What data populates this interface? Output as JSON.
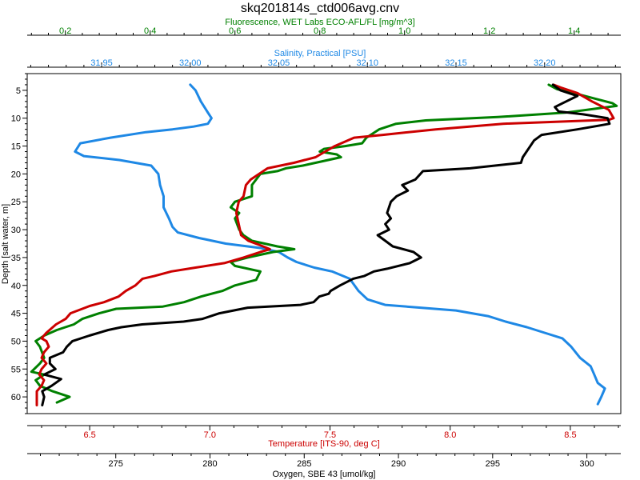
{
  "chart_data": {
    "type": "line",
    "title": "skq201814s_ctd006avg.cnv",
    "y_axis": {
      "label": "Depth [salt water, m]",
      "range": [
        63,
        2
      ],
      "ticks": [
        5,
        10,
        15,
        20,
        25,
        30,
        35,
        40,
        45,
        50,
        55,
        60
      ],
      "reversed": true
    },
    "x_axes": {
      "fluorescence": {
        "label": "Fluorescence, WET Labs ECO-AFL/FL [mg/m^3]",
        "position": "top",
        "range": [
          0.11,
          1.51
        ],
        "ticks": [
          "0.2",
          "0.4",
          "0.6",
          "0.8",
          "1.0",
          "1.2",
          "1.4"
        ],
        "color": "#008000"
      },
      "salinity": {
        "label": "Salinity, Practical [PSU]",
        "position": "top",
        "range": [
          31.908,
          32.243
        ],
        "ticks": [
          "31.95",
          "32.00",
          "32.05",
          "32.10",
          "32.15",
          "32.20"
        ],
        "color": "#1e88e5"
      },
      "temperature": {
        "label": "Temperature [ITS-90, deg C]",
        "position": "bottom",
        "range": [
          6.24,
          8.71
        ],
        "ticks": [
          "6.5",
          "7.0",
          "7.5",
          "8.0",
          "8.5"
        ],
        "color": "#cc0000"
      },
      "oxygen": {
        "label": "Oxygen, SBE 43 [umol/kg]",
        "position": "bottom",
        "range": [
          270.3,
          301.8
        ],
        "ticks": [
          "275",
          "280",
          "285",
          "290",
          "295",
          "300"
        ],
        "color": "#000000"
      }
    },
    "series": [
      {
        "axis": "salinity",
        "color": "#1e88e5",
        "points": [
          [
            32.0,
            4
          ],
          [
            32.003,
            5
          ],
          [
            32.006,
            7
          ],
          [
            32.008,
            8
          ],
          [
            32.01,
            9
          ],
          [
            32.012,
            10
          ],
          [
            32.01,
            11
          ],
          [
            32.002,
            11.5
          ],
          [
            31.99,
            12
          ],
          [
            31.975,
            12.5
          ],
          [
            31.955,
            13.5
          ],
          [
            31.938,
            14.5
          ],
          [
            31.935,
            16
          ],
          [
            31.94,
            16.8
          ],
          [
            31.96,
            17.5
          ],
          [
            31.978,
            18.5
          ],
          [
            31.982,
            20
          ],
          [
            31.983,
            22
          ],
          [
            31.985,
            24
          ],
          [
            31.985,
            26
          ],
          [
            31.988,
            28
          ],
          [
            31.99,
            29.5
          ],
          [
            31.993,
            30.5
          ],
          [
            32.005,
            31.5
          ],
          [
            32.02,
            32.5
          ],
          [
            32.04,
            33.3
          ],
          [
            32.05,
            34
          ],
          [
            32.055,
            35
          ],
          [
            32.06,
            35.8
          ],
          [
            32.07,
            36.8
          ],
          [
            32.08,
            37.5
          ],
          [
            32.09,
            38.8
          ],
          [
            32.095,
            41
          ],
          [
            32.1,
            42.5
          ],
          [
            32.11,
            43.5
          ],
          [
            32.13,
            44
          ],
          [
            32.15,
            44.5
          ],
          [
            32.168,
            45.5
          ],
          [
            32.178,
            46.5
          ],
          [
            32.19,
            47.5
          ],
          [
            32.2,
            48.5
          ],
          [
            32.21,
            49.5
          ],
          [
            32.215,
            51
          ],
          [
            32.22,
            53
          ],
          [
            32.226,
            54.5
          ],
          [
            32.228,
            56
          ],
          [
            32.23,
            57.5
          ],
          [
            32.234,
            58.5
          ],
          [
            32.232,
            60
          ],
          [
            32.23,
            61.3
          ]
        ]
      },
      {
        "axis": "fluorescence",
        "color": "#008000",
        "points": [
          [
            1.34,
            4
          ],
          [
            1.36,
            4.8
          ],
          [
            1.4,
            5.5
          ],
          [
            1.45,
            6.5
          ],
          [
            1.49,
            7.3
          ],
          [
            1.5,
            7.8
          ],
          [
            1.45,
            8.3
          ],
          [
            1.38,
            9
          ],
          [
            1.22,
            9.8
          ],
          [
            1.05,
            10.4
          ],
          [
            0.98,
            11
          ],
          [
            0.94,
            12
          ],
          [
            0.91,
            13.5
          ],
          [
            0.9,
            14.5
          ],
          [
            0.86,
            15
          ],
          [
            0.81,
            15.5
          ],
          [
            0.8,
            16
          ],
          [
            0.84,
            16.5
          ],
          [
            0.85,
            17
          ],
          [
            0.82,
            17.5
          ],
          [
            0.76,
            18.5
          ],
          [
            0.72,
            19
          ],
          [
            0.7,
            19.5
          ],
          [
            0.66,
            20
          ],
          [
            0.65,
            21
          ],
          [
            0.64,
            22
          ],
          [
            0.64,
            24
          ],
          [
            0.6,
            25
          ],
          [
            0.59,
            26
          ],
          [
            0.61,
            27
          ],
          [
            0.6,
            28
          ],
          [
            0.61,
            30
          ],
          [
            0.62,
            31
          ],
          [
            0.64,
            32
          ],
          [
            0.7,
            33
          ],
          [
            0.74,
            33.5
          ],
          [
            0.69,
            34
          ],
          [
            0.63,
            35
          ],
          [
            0.59,
            35.8
          ],
          [
            0.6,
            36.5
          ],
          [
            0.66,
            37.5
          ],
          [
            0.65,
            39
          ],
          [
            0.6,
            40
          ],
          [
            0.57,
            41
          ],
          [
            0.52,
            42
          ],
          [
            0.48,
            43
          ],
          [
            0.43,
            43.8
          ],
          [
            0.32,
            44.2
          ],
          [
            0.28,
            45
          ],
          [
            0.24,
            46
          ],
          [
            0.22,
            47
          ],
          [
            0.18,
            48
          ],
          [
            0.15,
            49
          ],
          [
            0.13,
            50
          ],
          [
            0.14,
            51
          ],
          [
            0.15,
            53
          ],
          [
            0.14,
            54
          ],
          [
            0.12,
            55.5
          ],
          [
            0.15,
            56
          ],
          [
            0.13,
            57
          ],
          [
            0.14,
            58
          ],
          [
            0.17,
            59
          ],
          [
            0.21,
            60
          ],
          [
            0.18,
            61
          ]
        ]
      },
      {
        "axis": "temperature",
        "color": "#cc0000",
        "points": [
          [
            8.43,
            4
          ],
          [
            8.46,
            4.5
          ],
          [
            8.53,
            5.5
          ],
          [
            8.59,
            7
          ],
          [
            8.66,
            8.5
          ],
          [
            8.68,
            10
          ],
          [
            8.66,
            10.3
          ],
          [
            8.22,
            11
          ],
          [
            7.94,
            12
          ],
          [
            7.72,
            13
          ],
          [
            7.6,
            13.5
          ],
          [
            7.52,
            15
          ],
          [
            7.48,
            16
          ],
          [
            7.44,
            17
          ],
          [
            7.35,
            18
          ],
          [
            7.24,
            19
          ],
          [
            7.17,
            21
          ],
          [
            7.15,
            22
          ],
          [
            7.14,
            24
          ],
          [
            7.12,
            25
          ],
          [
            7.11,
            27
          ],
          [
            7.12,
            29
          ],
          [
            7.13,
            31
          ],
          [
            7.16,
            32
          ],
          [
            7.21,
            32.8
          ],
          [
            7.25,
            33.5
          ],
          [
            7.21,
            34
          ],
          [
            7.14,
            35
          ],
          [
            7.06,
            36
          ],
          [
            6.94,
            36.8
          ],
          [
            6.84,
            37.5
          ],
          [
            6.77,
            38.3
          ],
          [
            6.72,
            38.8
          ],
          [
            6.69,
            40
          ],
          [
            6.65,
            41
          ],
          [
            6.62,
            42
          ],
          [
            6.56,
            43
          ],
          [
            6.5,
            43.7
          ],
          [
            6.42,
            45
          ],
          [
            6.4,
            46
          ],
          [
            6.36,
            47
          ],
          [
            6.32,
            48.5
          ],
          [
            6.3,
            49.5
          ],
          [
            6.32,
            50
          ],
          [
            6.33,
            51
          ],
          [
            6.31,
            52
          ],
          [
            6.3,
            53
          ],
          [
            6.32,
            54
          ],
          [
            6.3,
            55
          ],
          [
            6.29,
            56
          ],
          [
            6.31,
            57
          ],
          [
            6.3,
            58
          ],
          [
            6.28,
            59
          ],
          [
            6.28,
            60
          ],
          [
            6.28,
            61.5
          ]
        ]
      },
      {
        "axis": "oxygen",
        "color": "#000000",
        "points": [
          [
            298.2,
            4
          ],
          [
            298.6,
            5
          ],
          [
            299.5,
            6
          ],
          [
            298.9,
            7
          ],
          [
            298.3,
            8
          ],
          [
            298.5,
            8.8
          ],
          [
            299.8,
            9.3
          ],
          [
            301.1,
            10
          ],
          [
            301.2,
            11
          ],
          [
            300.7,
            11.3
          ],
          [
            299.5,
            12
          ],
          [
            297.6,
            13
          ],
          [
            297.2,
            14
          ],
          [
            297.0,
            15
          ],
          [
            296.8,
            16
          ],
          [
            296.6,
            17
          ],
          [
            296.5,
            18
          ],
          [
            293.8,
            19
          ],
          [
            291.3,
            19.5
          ],
          [
            290.9,
            21
          ],
          [
            290.2,
            22
          ],
          [
            290.5,
            23
          ],
          [
            289.9,
            24
          ],
          [
            289.6,
            25
          ],
          [
            289.4,
            27
          ],
          [
            289.6,
            28
          ],
          [
            289.3,
            29
          ],
          [
            289.5,
            30
          ],
          [
            288.9,
            31
          ],
          [
            289.3,
            32
          ],
          [
            289.7,
            33
          ],
          [
            290.8,
            34
          ],
          [
            291.2,
            35
          ],
          [
            290.6,
            36
          ],
          [
            289.4,
            37
          ],
          [
            288.7,
            37.5
          ],
          [
            288.2,
            38.3
          ],
          [
            287.6,
            38.8
          ],
          [
            286.9,
            40
          ],
          [
            286.4,
            41
          ],
          [
            286.3,
            41.5
          ],
          [
            285.8,
            42
          ],
          [
            285.5,
            43
          ],
          [
            284.8,
            43.5
          ],
          [
            282.0,
            44
          ],
          [
            280.5,
            45
          ],
          [
            279.6,
            46
          ],
          [
            278.6,
            46.5
          ],
          [
            276.4,
            47
          ],
          [
            275.3,
            47.5
          ],
          [
            274.6,
            48
          ],
          [
            273.6,
            49
          ],
          [
            272.7,
            50
          ],
          [
            272.4,
            51
          ],
          [
            272.2,
            52
          ],
          [
            271.5,
            53
          ],
          [
            271.5,
            54
          ],
          [
            271.8,
            55
          ],
          [
            271.2,
            56
          ],
          [
            272.1,
            56.8
          ],
          [
            271.6,
            58
          ],
          [
            271.1,
            59
          ],
          [
            271.2,
            60
          ],
          [
            271.1,
            61.5
          ]
        ]
      }
    ]
  }
}
